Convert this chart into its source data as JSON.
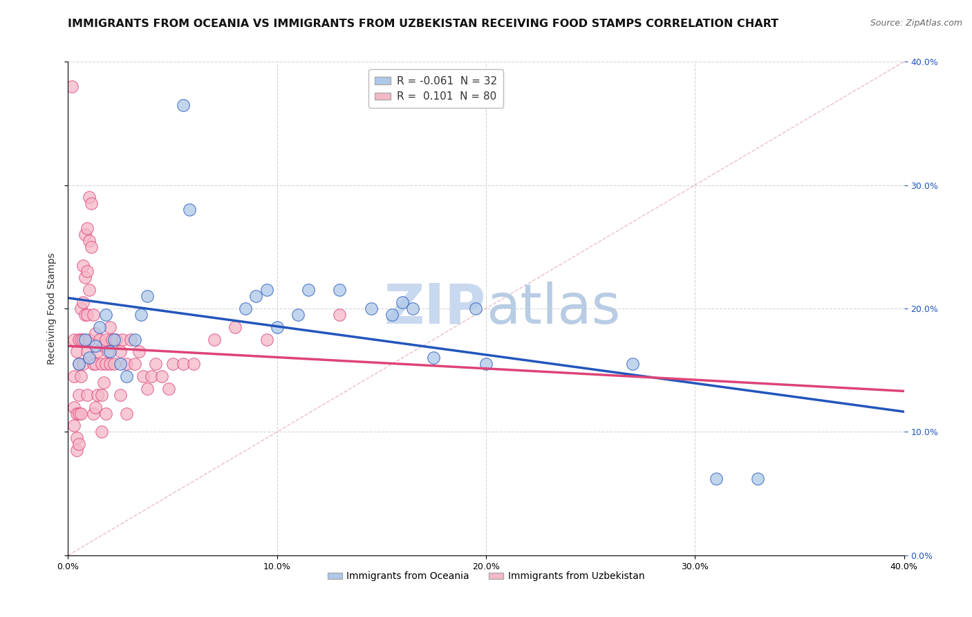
{
  "title": "IMMIGRANTS FROM OCEANIA VS IMMIGRANTS FROM UZBEKISTAN RECEIVING FOOD STAMPS CORRELATION CHART",
  "source": "Source: ZipAtlas.com",
  "ylabel": "Receiving Food Stamps",
  "legend_labels": [
    "Immigrants from Oceania",
    "Immigrants from Uzbekistan"
  ],
  "R_oceania": -0.061,
  "N_oceania": 32,
  "R_uzbekistan": 0.101,
  "N_uzbekistan": 80,
  "color_oceania": "#adc8e8",
  "color_uzbekistan": "#f5b8c8",
  "line_color_oceania": "#2255bb",
  "line_color_uzbekistan": "#dd4477",
  "background": "#ffffff",
  "grid_color": "#cccccc",
  "xmin": 0.0,
  "xmax": 0.4,
  "ymin": 0.0,
  "ymax": 0.4,
  "oceania_x": [
    0.005,
    0.008,
    0.01,
    0.013,
    0.015,
    0.018,
    0.02,
    0.022,
    0.025,
    0.028,
    0.032,
    0.035,
    0.038,
    0.055,
    0.058,
    0.085,
    0.09,
    0.095,
    0.1,
    0.11,
    0.115,
    0.13,
    0.145,
    0.155,
    0.16,
    0.165,
    0.175,
    0.195,
    0.2,
    0.27,
    0.31,
    0.33
  ],
  "oceania_y": [
    0.155,
    0.175,
    0.16,
    0.17,
    0.185,
    0.195,
    0.165,
    0.175,
    0.155,
    0.145,
    0.175,
    0.195,
    0.21,
    0.365,
    0.28,
    0.2,
    0.21,
    0.215,
    0.185,
    0.195,
    0.215,
    0.215,
    0.2,
    0.195,
    0.205,
    0.2,
    0.16,
    0.2,
    0.155,
    0.155,
    0.062,
    0.062
  ],
  "uzbekistan_x": [
    0.002,
    0.003,
    0.003,
    0.003,
    0.003,
    0.004,
    0.004,
    0.004,
    0.004,
    0.005,
    0.005,
    0.005,
    0.005,
    0.005,
    0.006,
    0.006,
    0.006,
    0.006,
    0.007,
    0.007,
    0.007,
    0.007,
    0.008,
    0.008,
    0.008,
    0.009,
    0.009,
    0.009,
    0.009,
    0.009,
    0.01,
    0.01,
    0.01,
    0.01,
    0.011,
    0.011,
    0.012,
    0.012,
    0.012,
    0.013,
    0.013,
    0.013,
    0.014,
    0.014,
    0.015,
    0.016,
    0.016,
    0.016,
    0.017,
    0.017,
    0.018,
    0.018,
    0.018,
    0.019,
    0.02,
    0.02,
    0.021,
    0.022,
    0.023,
    0.025,
    0.025,
    0.026,
    0.028,
    0.028,
    0.03,
    0.032,
    0.034,
    0.036,
    0.038,
    0.04,
    0.042,
    0.045,
    0.048,
    0.05,
    0.055,
    0.06,
    0.07,
    0.08,
    0.095,
    0.13
  ],
  "uzbekistan_y": [
    0.38,
    0.145,
    0.175,
    0.12,
    0.105,
    0.165,
    0.115,
    0.095,
    0.085,
    0.175,
    0.155,
    0.13,
    0.115,
    0.09,
    0.2,
    0.175,
    0.145,
    0.115,
    0.235,
    0.205,
    0.175,
    0.155,
    0.26,
    0.225,
    0.195,
    0.265,
    0.23,
    0.195,
    0.165,
    0.13,
    0.29,
    0.255,
    0.215,
    0.175,
    0.285,
    0.25,
    0.195,
    0.155,
    0.115,
    0.18,
    0.155,
    0.12,
    0.165,
    0.13,
    0.175,
    0.155,
    0.13,
    0.1,
    0.17,
    0.14,
    0.175,
    0.155,
    0.115,
    0.165,
    0.185,
    0.155,
    0.175,
    0.155,
    0.175,
    0.165,
    0.13,
    0.175,
    0.155,
    0.115,
    0.175,
    0.155,
    0.165,
    0.145,
    0.135,
    0.145,
    0.155,
    0.145,
    0.135,
    0.155,
    0.155,
    0.155,
    0.175,
    0.185,
    0.175,
    0.195
  ],
  "watermark_zip": "ZIP",
  "watermark_atlas": "atlas",
  "watermark_color": "#c8d8ee",
  "title_fontsize": 11.5,
  "source_fontsize": 9,
  "axis_label_fontsize": 10,
  "tick_fontsize": 9
}
